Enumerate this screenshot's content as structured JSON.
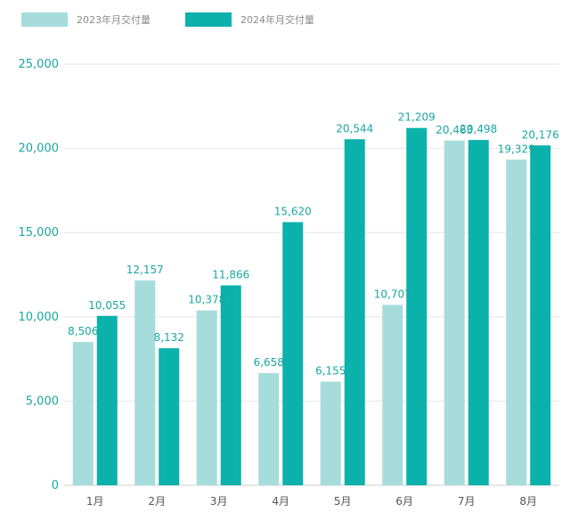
{
  "colors": {
    "series_2023": "#a6dcdc",
    "series_2024": "#0bb1ab",
    "grid": "#e6e6e6",
    "axis": "#cccccc",
    "tick_text": "#1aa7a0"
  },
  "legend": {
    "items": [
      {
        "label": "2023年月交付量",
        "color_key": "series_2023"
      },
      {
        "label": "2024年月交付量",
        "color_key": "series_2024"
      }
    ]
  },
  "chart_data": {
    "type": "bar",
    "title": "",
    "xlabel": "",
    "ylabel": "",
    "categories": [
      "1月",
      "2月",
      "3月",
      "4月",
      "5月",
      "6月",
      "7月",
      "8月"
    ],
    "series": [
      {
        "name": "2023年月交付量",
        "values": [
          8506,
          12157,
          10378,
          6658,
          6155,
          10707,
          20463,
          19329
        ],
        "labels": [
          "8,506",
          "12,157",
          "10,378",
          "6,658",
          "6,155",
          "10,707",
          "20,463",
          "19,329"
        ]
      },
      {
        "name": "2024年月交付量",
        "values": [
          10055,
          8132,
          11866,
          15620,
          20544,
          21209,
          20498,
          20176
        ],
        "labels": [
          "10,055",
          "8,132",
          "11,866",
          "15,620",
          "20,544",
          "21,209",
          "20,498",
          "20,176"
        ]
      }
    ],
    "ylim": [
      0,
      25000
    ],
    "yticks": [
      0,
      5000,
      10000,
      15000,
      20000,
      25000
    ],
    "ytick_labels": [
      "0",
      "5,000",
      "10,000",
      "15,000",
      "20,000",
      "25,000"
    ],
    "grid": true,
    "legend_position": "top-left"
  }
}
